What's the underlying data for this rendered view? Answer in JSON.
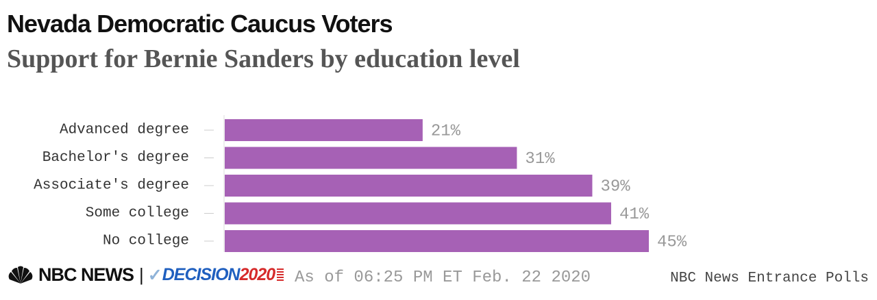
{
  "header": {
    "title": "Nevada Democratic Caucus Voters",
    "subtitle": "Support for Bernie Sanders by education level"
  },
  "chart_data": {
    "type": "bar",
    "orientation": "horizontal",
    "categories": [
      "Advanced degree",
      "Bachelor's degree",
      "Associate's degree",
      "Some college",
      "No college"
    ],
    "values": [
      21,
      31,
      39,
      41,
      45
    ],
    "value_labels": [
      "21%",
      "31%",
      "39%",
      "41%",
      "45%"
    ],
    "xlim": [
      0,
      45
    ],
    "bar_color": "#a661b5",
    "grid": false
  },
  "footer": {
    "logo_nbc": "NBC NEWS",
    "logo_separator": "|",
    "logo_decision_word": "DECISION",
    "logo_decision_year": "2020",
    "timestamp": "As of 06:25 PM ET Feb. 22 2020",
    "source": "NBC News Entrance Polls"
  },
  "colors": {
    "bar": "#a661b5",
    "category_label": "#333333",
    "value_label": "#999999",
    "brand_blue": "#1f5fbf",
    "brand_red": "#d62b2b"
  },
  "icons": {
    "peacock": "nbc-peacock-icon",
    "checkmark": "decision-check-icon"
  }
}
